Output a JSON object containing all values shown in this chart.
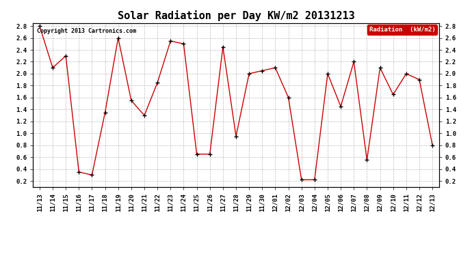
{
  "title": "Solar Radiation per Day KW/m2 20131213",
  "copyright_text": "Copyright 2013 Cartronics.com",
  "legend_label": "Radiation  (kW/m2)",
  "dates": [
    "11/13",
    "11/14",
    "11/15",
    "11/16",
    "11/17",
    "11/18",
    "11/19",
    "11/20",
    "11/21",
    "11/22",
    "11/23",
    "11/24",
    "11/25",
    "11/26",
    "11/27",
    "11/28",
    "11/29",
    "11/30",
    "12/01",
    "12/02",
    "12/03",
    "12/04",
    "12/05",
    "12/06",
    "12/07",
    "12/08",
    "12/09",
    "12/10",
    "12/11",
    "12/12",
    "12/13"
  ],
  "values": [
    2.8,
    2.1,
    2.3,
    0.35,
    0.3,
    1.35,
    2.6,
    1.55,
    1.3,
    1.85,
    2.55,
    2.5,
    0.65,
    0.65,
    2.45,
    0.95,
    2.0,
    2.05,
    2.1,
    1.6,
    0.22,
    0.22,
    2.0,
    1.45,
    2.2,
    0.55,
    2.1,
    1.65,
    2.0,
    1.9,
    0.8
  ],
  "line_color": "#cc0000",
  "marker_color": "#000000",
  "bg_color": "#ffffff",
  "plot_bg_color": "#ffffff",
  "grid_color": "#bbbbbb",
  "title_fontsize": 11,
  "tick_fontsize": 6.5,
  "copyright_fontsize": 6,
  "ylim": [
    0.1,
    2.85
  ],
  "yticks": [
    0.2,
    0.4,
    0.6,
    0.8,
    1.0,
    1.2,
    1.4,
    1.6,
    1.8,
    2.0,
    2.2,
    2.4,
    2.6,
    2.8
  ],
  "legend_bg": "#cc0000",
  "legend_text_color": "#ffffff",
  "legend_fontsize": 6.5
}
